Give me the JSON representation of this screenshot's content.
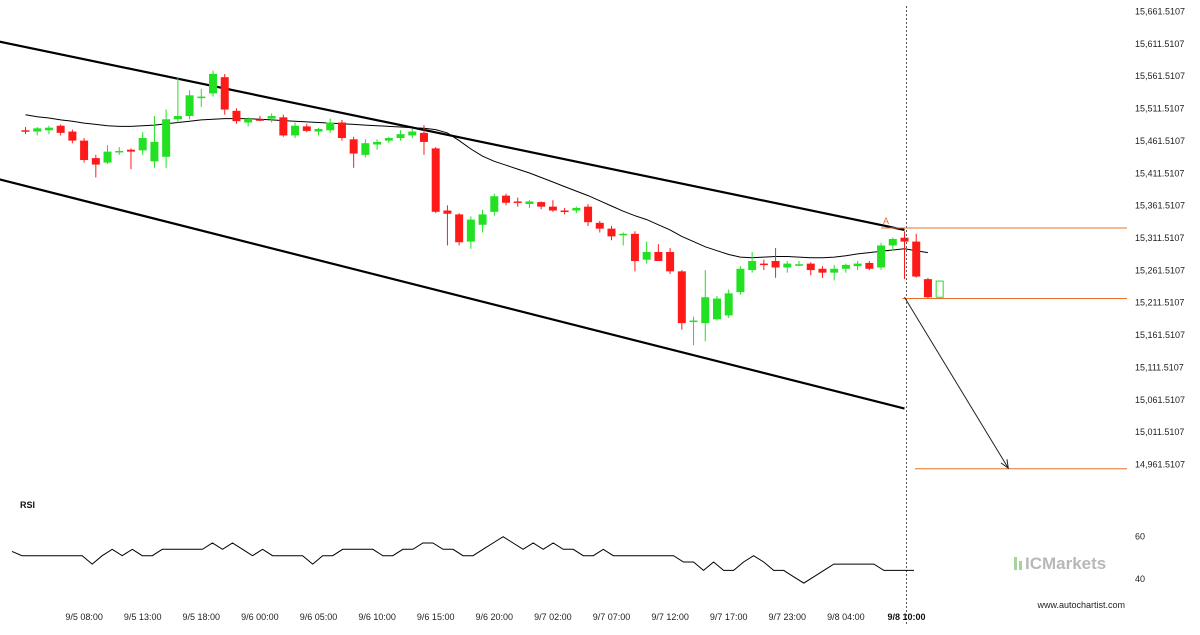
{
  "chart_data": {
    "type": "candlestick",
    "instrument_brand": "ICMarkets",
    "watermark": "www.autochartist.com",
    "price_axis": {
      "range": [
        14950,
        15670
      ],
      "tick_labels": [
        "15,661.5107",
        "15,611.5107",
        "15,561.5107",
        "15,511.5107",
        "15,461.5107",
        "15,411.5107",
        "15,361.5107",
        "15,311.5107",
        "15,261.5107",
        "15,211.5107",
        "15,161.5107",
        "15,111.5107",
        "15,061.5107",
        "15,011.5107",
        "14,961.5107"
      ],
      "tick_values": [
        15661.5107,
        15611.5107,
        15561.5107,
        15511.5107,
        15461.5107,
        15411.5107,
        15361.5107,
        15311.5107,
        15261.5107,
        15211.5107,
        15161.5107,
        15111.5107,
        15061.5107,
        15011.5107,
        14961.5107
      ]
    },
    "time_axis": {
      "labels": [
        "9/5 08:00",
        "9/5 13:00",
        "9/5 18:00",
        "9/6 00:00",
        "9/6 05:00",
        "9/6 10:00",
        "9/6 15:00",
        "9/6 20:00",
        "9/7 02:00",
        "9/7 07:00",
        "9/7 12:00",
        "9/7 17:00",
        "9/7 23:00",
        "9/8 04:00",
        "9/8 10:00"
      ],
      "label_bar_index": [
        5,
        10,
        15,
        20,
        25,
        30,
        35,
        40,
        45,
        50,
        55,
        60,
        65,
        70,
        75
      ],
      "bold_label": "9/8 10:00"
    },
    "candles": [
      {
        "o": 15478,
        "h": 15483,
        "l": 15472,
        "c": 15476
      },
      {
        "o": 15476,
        "h": 15483,
        "l": 15470,
        "c": 15481
      },
      {
        "o": 15478,
        "h": 15485,
        "l": 15472,
        "c": 15482
      },
      {
        "o": 15485,
        "h": 15487,
        "l": 15470,
        "c": 15474
      },
      {
        "o": 15476,
        "h": 15479,
        "l": 15458,
        "c": 15462
      },
      {
        "o": 15462,
        "h": 15466,
        "l": 15428,
        "c": 15432
      },
      {
        "o": 15435,
        "h": 15440,
        "l": 15405,
        "c": 15425
      },
      {
        "o": 15428,
        "h": 15455,
        "l": 15426,
        "c": 15445
      },
      {
        "o": 15444,
        "h": 15452,
        "l": 15440,
        "c": 15446
      },
      {
        "o": 15448,
        "h": 15450,
        "l": 15418,
        "c": 15445
      },
      {
        "o": 15447,
        "h": 15475,
        "l": 15440,
        "c": 15466
      },
      {
        "o": 15430,
        "h": 15500,
        "l": 15420,
        "c": 15460
      },
      {
        "o": 15437,
        "h": 15510,
        "l": 15420,
        "c": 15495
      },
      {
        "o": 15495,
        "h": 15560,
        "l": 15490,
        "c": 15500
      },
      {
        "o": 15500,
        "h": 15540,
        "l": 15495,
        "c": 15532
      },
      {
        "o": 15528,
        "h": 15542,
        "l": 15514,
        "c": 15530
      },
      {
        "o": 15535,
        "h": 15570,
        "l": 15530,
        "c": 15565
      },
      {
        "o": 15560,
        "h": 15565,
        "l": 15502,
        "c": 15510
      },
      {
        "o": 15508,
        "h": 15512,
        "l": 15488,
        "c": 15492
      },
      {
        "o": 15490,
        "h": 15498,
        "l": 15484,
        "c": 15496
      },
      {
        "o": 15495,
        "h": 15500,
        "l": 15492,
        "c": 15494
      },
      {
        "o": 15496,
        "h": 15504,
        "l": 15490,
        "c": 15500
      },
      {
        "o": 15498,
        "h": 15502,
        "l": 15468,
        "c": 15470
      },
      {
        "o": 15470,
        "h": 15490,
        "l": 15466,
        "c": 15485
      },
      {
        "o": 15484,
        "h": 15488,
        "l": 15475,
        "c": 15477
      },
      {
        "o": 15476,
        "h": 15482,
        "l": 15470,
        "c": 15480
      },
      {
        "o": 15478,
        "h": 15496,
        "l": 15474,
        "c": 15490
      },
      {
        "o": 15490,
        "h": 15494,
        "l": 15462,
        "c": 15466
      },
      {
        "o": 15464,
        "h": 15468,
        "l": 15420,
        "c": 15442
      },
      {
        "o": 15440,
        "h": 15464,
        "l": 15436,
        "c": 15458
      },
      {
        "o": 15456,
        "h": 15464,
        "l": 15448,
        "c": 15460
      },
      {
        "o": 15462,
        "h": 15468,
        "l": 15458,
        "c": 15466
      },
      {
        "o": 15466,
        "h": 15478,
        "l": 15462,
        "c": 15472
      },
      {
        "o": 15470,
        "h": 15480,
        "l": 15466,
        "c": 15476
      },
      {
        "o": 15474,
        "h": 15486,
        "l": 15440,
        "c": 15460
      },
      {
        "o": 15450,
        "h": 15452,
        "l": 15350,
        "c": 15352
      },
      {
        "o": 15354,
        "h": 15362,
        "l": 15300,
        "c": 15349
      },
      {
        "o": 15348,
        "h": 15350,
        "l": 15300,
        "c": 15305
      },
      {
        "o": 15306,
        "h": 15345,
        "l": 15295,
        "c": 15340
      },
      {
        "o": 15332,
        "h": 15355,
        "l": 15320,
        "c": 15348
      },
      {
        "o": 15352,
        "h": 15380,
        "l": 15346,
        "c": 15376
      },
      {
        "o": 15377,
        "h": 15380,
        "l": 15362,
        "c": 15366
      },
      {
        "o": 15368,
        "h": 15374,
        "l": 15360,
        "c": 15366
      },
      {
        "o": 15364,
        "h": 15370,
        "l": 15358,
        "c": 15368
      },
      {
        "o": 15367,
        "h": 15368,
        "l": 15356,
        "c": 15360
      },
      {
        "o": 15360,
        "h": 15370,
        "l": 15352,
        "c": 15354
      },
      {
        "o": 15354,
        "h": 15358,
        "l": 15348,
        "c": 15352
      },
      {
        "o": 15354,
        "h": 15360,
        "l": 15350,
        "c": 15358
      },
      {
        "o": 15360,
        "h": 15364,
        "l": 15330,
        "c": 15336
      },
      {
        "o": 15335,
        "h": 15338,
        "l": 15320,
        "c": 15326
      },
      {
        "o": 15326,
        "h": 15330,
        "l": 15308,
        "c": 15314
      },
      {
        "o": 15316,
        "h": 15320,
        "l": 15300,
        "c": 15318
      },
      {
        "o": 15318,
        "h": 15322,
        "l": 15260,
        "c": 15276
      },
      {
        "o": 15278,
        "h": 15306,
        "l": 15272,
        "c": 15290
      },
      {
        "o": 15290,
        "h": 15302,
        "l": 15276,
        "c": 15276
      },
      {
        "o": 15290,
        "h": 15296,
        "l": 15256,
        "c": 15260
      },
      {
        "o": 15260,
        "h": 15262,
        "l": 15170,
        "c": 15180
      },
      {
        "o": 15182,
        "h": 15190,
        "l": 15146,
        "c": 15184
      },
      {
        "o": 15180,
        "h": 15262,
        "l": 15152,
        "c": 15220
      },
      {
        "o": 15186,
        "h": 15222,
        "l": 15184,
        "c": 15218
      },
      {
        "o": 15192,
        "h": 15232,
        "l": 15188,
        "c": 15226
      },
      {
        "o": 15228,
        "h": 15268,
        "l": 15224,
        "c": 15264
      },
      {
        "o": 15262,
        "h": 15290,
        "l": 15258,
        "c": 15276
      },
      {
        "o": 15272,
        "h": 15278,
        "l": 15262,
        "c": 15270
      },
      {
        "o": 15276,
        "h": 15296,
        "l": 15250,
        "c": 15266
      },
      {
        "o": 15266,
        "h": 15276,
        "l": 15258,
        "c": 15272
      },
      {
        "o": 15270,
        "h": 15276,
        "l": 15268,
        "c": 15271
      },
      {
        "o": 15272,
        "h": 15274,
        "l": 15254,
        "c": 15262
      },
      {
        "o": 15264,
        "h": 15268,
        "l": 15250,
        "c": 15258
      },
      {
        "o": 15258,
        "h": 15270,
        "l": 15246,
        "c": 15264
      },
      {
        "o": 15264,
        "h": 15272,
        "l": 15258,
        "c": 15270
      },
      {
        "o": 15268,
        "h": 15276,
        "l": 15262,
        "c": 15272
      },
      {
        "o": 15273,
        "h": 15276,
        "l": 15262,
        "c": 15264
      },
      {
        "o": 15266,
        "h": 15304,
        "l": 15262,
        "c": 15300
      },
      {
        "o": 15300,
        "h": 15312,
        "l": 15292,
        "c": 15310
      },
      {
        "o": 15312,
        "h": 15322,
        "l": 15248,
        "c": 15306
      },
      {
        "o": 15306,
        "h": 15318,
        "l": 15250,
        "c": 15252
      },
      {
        "o": 15248,
        "h": 15250,
        "l": 15218,
        "c": 15220
      }
    ],
    "pending_candle": {
      "o": 15220,
      "c": 15245
    },
    "ma_line": [
      15502,
      15499,
      15497,
      15494,
      15492,
      15489,
      15487,
      15485,
      15484,
      15484,
      15485,
      15486,
      15488,
      15490,
      15492,
      15494,
      15495,
      15496,
      15496,
      15496,
      15495,
      15494,
      15493,
      15492,
      15491,
      15490,
      15489,
      15488,
      15487,
      15486,
      15485,
      15484,
      15483,
      15482,
      15481,
      15479,
      15474,
      15462,
      15449,
      15438,
      15430,
      15424,
      15418,
      15412,
      15405,
      15398,
      15391,
      15384,
      15377,
      15369,
      15361,
      15353,
      15346,
      15340,
      15332,
      15324,
      15314,
      15306,
      15298,
      15292,
      15286,
      15282,
      15281,
      15282,
      15283,
      15283,
      15282,
      15281,
      15281,
      15282,
      15284,
      15287,
      15289,
      15291,
      15293,
      15295,
      15292,
      15289
    ],
    "channel": {
      "upper": {
        "x0": -7,
        "y0": 15633,
        "x1": 75,
        "y1": 15324
      },
      "lower": {
        "x0": -7,
        "y0": 15424,
        "x1": 75,
        "y1": 15048
      }
    },
    "levels": {
      "upper_level": 15327,
      "entry_level": 15218,
      "target_level": 14955
    },
    "forecast_arrow": {
      "from_bar": 75,
      "from_price": 15220,
      "to_bar": 83,
      "to_price": 14956
    },
    "pattern_marker": {
      "label": "A",
      "bar": 73,
      "price": 15333
    },
    "rsi": {
      "label": "RSI",
      "range": [
        30,
        75
      ],
      "tick_labels": [
        "60",
        "40"
      ],
      "tick_values": [
        60,
        40
      ],
      "values": [
        53,
        51,
        51,
        51,
        51,
        51,
        51,
        51,
        47,
        51,
        54,
        51,
        54,
        51,
        51,
        54,
        54,
        54,
        54,
        54,
        57,
        54,
        57,
        54,
        51,
        54,
        51,
        51,
        51,
        51,
        47,
        51,
        51,
        54,
        54,
        54,
        54,
        51,
        51,
        54,
        54,
        57,
        57,
        54,
        54,
        51,
        51,
        54,
        57,
        60,
        57,
        54,
        57,
        54,
        57,
        54,
        54,
        51,
        51,
        54,
        51,
        51,
        51,
        51,
        51,
        51,
        51,
        48,
        48,
        44,
        48,
        44,
        44,
        48,
        51,
        48,
        44,
        44,
        41,
        38,
        41,
        44,
        47,
        47,
        47,
        47,
        47,
        44,
        44,
        44,
        44
      ]
    },
    "grid": false,
    "legend": "none"
  }
}
